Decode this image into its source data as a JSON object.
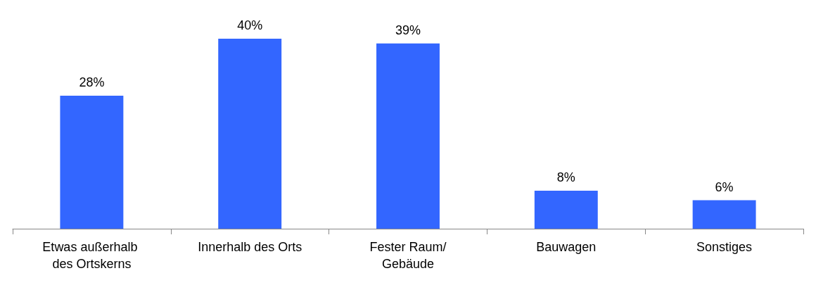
{
  "chart_data": {
    "type": "bar",
    "categories": [
      "Etwas außerhalb des Ortskerns",
      "Innerhalb des Orts",
      "Fester Raum/Gebäude",
      "Bauwagen",
      "Sonstiges"
    ],
    "values": [
      28,
      40,
      39,
      8,
      6
    ],
    "color": "#3366ff",
    "value_labels": [
      "28%",
      "40%",
      "39%",
      "8%",
      "6%"
    ]
  }
}
